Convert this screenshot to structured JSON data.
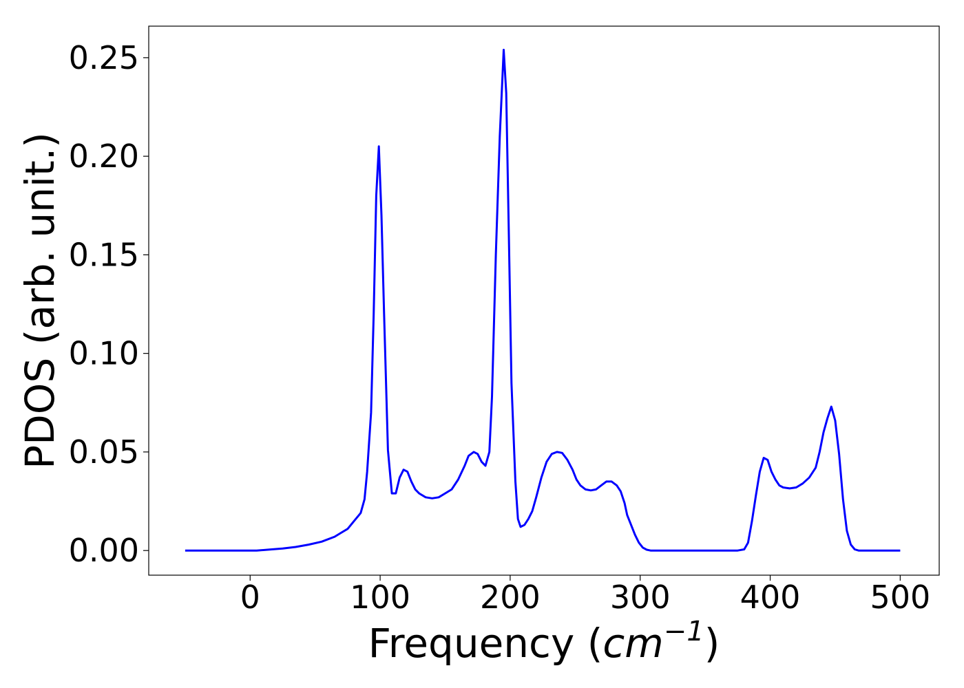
{
  "chart_data": {
    "type": "line",
    "xlabel": "Frequency",
    "xlabel_unit": "cm",
    "xlabel_unit_exp": "−1",
    "ylabel": "PDOS (arb. unit.)",
    "xlim": [
      -78,
      530
    ],
    "ylim": [
      -0.0125,
      0.266
    ],
    "xticks": [
      0,
      100,
      200,
      300,
      400,
      500
    ],
    "xtick_labels": [
      "0",
      "100",
      "200",
      "300",
      "400",
      "500"
    ],
    "yticks": [
      0.0,
      0.05,
      0.1,
      0.15,
      0.2,
      0.25
    ],
    "ytick_labels": [
      "0.00",
      "0.05",
      "0.10",
      "0.15",
      "0.20",
      "0.25"
    ],
    "grid": false,
    "color": "#0000ff",
    "x": [
      -50,
      -25,
      0,
      5,
      15,
      25,
      35,
      45,
      55,
      65,
      70,
      75,
      80,
      85,
      88,
      90,
      93,
      95,
      97,
      99,
      101,
      103,
      106,
      109,
      112,
      115,
      118,
      121,
      124,
      127,
      130,
      135,
      140,
      145,
      150,
      155,
      160,
      165,
      168,
      172,
      175,
      178,
      181,
      184,
      186,
      189,
      192,
      195,
      197,
      199,
      201,
      204,
      206,
      208,
      211,
      214,
      217,
      220,
      224,
      228,
      232,
      236,
      240,
      244,
      248,
      251,
      254,
      258,
      262,
      266,
      270,
      274,
      278,
      282,
      285,
      288,
      290,
      293,
      296,
      299,
      302,
      305,
      308,
      312,
      320,
      340,
      360,
      375,
      380,
      383,
      386,
      389,
      392,
      395,
      398,
      401,
      404,
      407,
      410,
      415,
      420,
      425,
      430,
      435,
      438,
      441,
      444,
      447,
      450,
      453,
      456,
      459,
      462,
      465,
      468,
      475,
      500
    ],
    "y": [
      0.0,
      0.0,
      0.0,
      0.0,
      0.0005,
      0.001,
      0.0018,
      0.003,
      0.0045,
      0.007,
      0.009,
      0.011,
      0.015,
      0.019,
      0.026,
      0.04,
      0.07,
      0.12,
      0.18,
      0.205,
      0.17,
      0.12,
      0.051,
      0.029,
      0.029,
      0.037,
      0.041,
      0.04,
      0.035,
      0.031,
      0.029,
      0.027,
      0.0265,
      0.027,
      0.029,
      0.031,
      0.036,
      0.043,
      0.048,
      0.05,
      0.049,
      0.045,
      0.043,
      0.05,
      0.078,
      0.15,
      0.21,
      0.254,
      0.232,
      0.16,
      0.085,
      0.035,
      0.016,
      0.012,
      0.013,
      0.016,
      0.02,
      0.027,
      0.037,
      0.045,
      0.049,
      0.05,
      0.0495,
      0.046,
      0.041,
      0.036,
      0.033,
      0.031,
      0.0305,
      0.031,
      0.033,
      0.035,
      0.035,
      0.033,
      0.03,
      0.024,
      0.018,
      0.013,
      0.008,
      0.004,
      0.0015,
      0.0004,
      0.0,
      0.0,
      0.0,
      0.0,
      0.0,
      0.0,
      0.0006,
      0.004,
      0.015,
      0.028,
      0.04,
      0.047,
      0.046,
      0.04,
      0.036,
      0.033,
      0.032,
      0.0315,
      0.032,
      0.034,
      0.037,
      0.042,
      0.05,
      0.06,
      0.067,
      0.073,
      0.066,
      0.049,
      0.026,
      0.01,
      0.003,
      0.0006,
      0.0,
      0.0,
      0.0
    ]
  }
}
